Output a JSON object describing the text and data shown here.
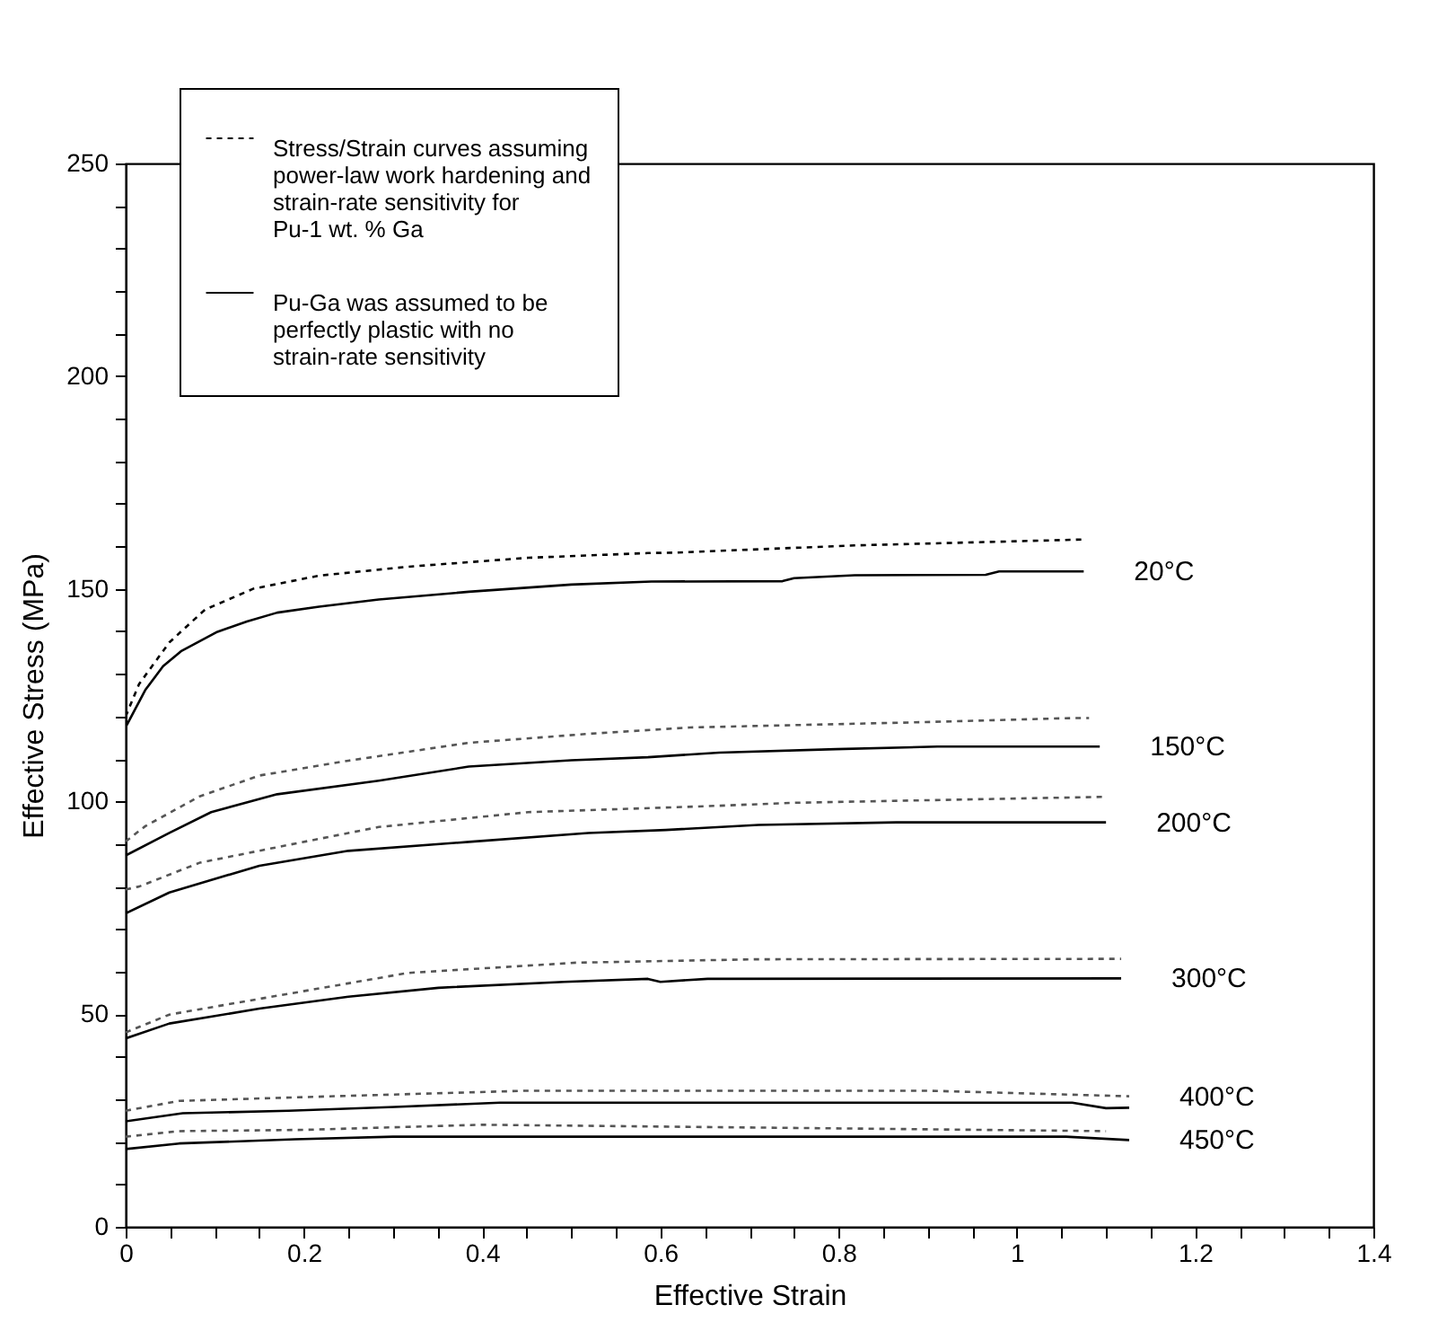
{
  "chart_data": {
    "type": "line",
    "xlabel": "Effective Strain",
    "ylabel": "Effective Stress (MPa)",
    "xlim": [
      0,
      1.4
    ],
    "ylim": [
      0,
      250
    ],
    "xticks": [
      0,
      {
        "value": 0.05,
        "label": null
      },
      0.2,
      {
        "value": 0.1,
        "label": null
      },
      {
        "value": 0.15,
        "label": null
      },
      {
        "value": 0.25,
        "label": null
      },
      {
        "value": 0.3,
        "label": null
      },
      {
        "value": 0.35,
        "label": null
      },
      0.4,
      {
        "value": 0.45,
        "label": null
      },
      {
        "value": 0.5,
        "label": null
      },
      {
        "value": 0.55,
        "label": null
      },
      0.6,
      {
        "value": 0.65,
        "label": null
      },
      {
        "value": 0.7,
        "label": null
      },
      {
        "value": 0.75,
        "label": null
      },
      0.8,
      {
        "value": 0.85,
        "label": null
      },
      {
        "value": 0.9,
        "label": null
      },
      {
        "value": 0.95,
        "label": null
      },
      1,
      {
        "value": 1.05,
        "label": null
      },
      {
        "value": 1.1,
        "label": null
      },
      {
        "value": 1.15,
        "label": null
      },
      1.2,
      {
        "value": 1.25,
        "label": null
      },
      {
        "value": 1.3,
        "label": null
      },
      {
        "value": 1.35,
        "label": null
      },
      1.4
    ],
    "yticks": [
      0,
      {
        "value": 10,
        "label": null
      },
      {
        "value": 20,
        "label": null
      },
      {
        "value": 30,
        "label": null
      },
      {
        "value": 40,
        "label": null
      },
      50,
      {
        "value": 60,
        "label": null
      },
      {
        "value": 70,
        "label": null
      },
      {
        "value": 80,
        "label": null
      },
      {
        "value": 90,
        "label": null
      },
      100,
      {
        "value": 110,
        "label": null
      },
      {
        "value": 120,
        "label": null
      },
      {
        "value": 130,
        "label": null
      },
      {
        "value": 140,
        "label": null
      },
      150,
      {
        "value": 160,
        "label": null
      },
      {
        "value": 170,
        "label": null
      },
      {
        "value": 180,
        "label": null
      },
      {
        "value": 190,
        "label": null
      },
      200,
      {
        "value": 210,
        "label": null
      },
      {
        "value": 220,
        "label": null
      },
      {
        "value": 230,
        "label": null
      },
      {
        "value": 240,
        "label": null
      },
      250
    ],
    "grid": false,
    "legend": "top left",
    "series": [
      {
        "name": "Stress/Strain curves assuming power-law work hardening and strain-rate sensitivity for Pu-1 wt. % Ga",
        "color": "#000000",
        "line_style": "dashed",
        "x": [
          0,
          0.015,
          0.049,
          0.089,
          0.143,
          0.217,
          0.317,
          0.452,
          0.586,
          0.616,
          0.818,
          1.076
        ],
        "values": [
          120,
          127.6,
          137.4,
          145.1,
          150,
          153.1,
          155.2,
          157.3,
          158.4,
          158.5,
          160.2,
          161.6
        ]
      },
      {
        "name": "Pu-Ga was assumed to be perfectly plastic with no strain-rate sensitivity",
        "color": "#000000",
        "line_style": "solid",
        "x": [
          0,
          0.022,
          0.042,
          0.062,
          0.103,
          0.136,
          0.17,
          0.217,
          0.284,
          0.385,
          0.5,
          0.59,
          0.737,
          0.75,
          0.818,
          0.965,
          0.98,
          1.075
        ],
        "values": [
          117.5,
          126.2,
          131.8,
          135.3,
          139.9,
          142.3,
          144.4,
          145.8,
          147.5,
          149.3,
          151,
          151.7,
          151.8,
          152.5,
          153.2,
          153.3,
          154.1,
          154.1
        ]
      },
      {
        "color": "#555555",
        "line_style": "dashed",
        "x": [
          0,
          0.022,
          0.083,
          0.15,
          0.25,
          0.385,
          0.519,
          0.633,
          0.885,
          1.06,
          1.081
        ],
        "values": [
          90.6,
          94.2,
          101.2,
          106.1,
          109.6,
          113.8,
          115.9,
          117.4,
          118.6,
          119.6,
          119.6
        ]
      },
      {
        "color": "#000000",
        "line_style": "solid",
        "x": [
          0,
          0.049,
          0.096,
          0.17,
          0.284,
          0.385,
          0.5,
          0.586,
          0.666,
          0.797,
          0.911,
          1.093
        ],
        "values": [
          87.3,
          92.6,
          97.5,
          101.7,
          104.9,
          108.2,
          109.7,
          110.4,
          111.5,
          112.3,
          112.9,
          112.9
        ]
      },
      {
        "color": "#555555",
        "line_style": "dashed",
        "x": [
          0,
          0.015,
          0.083,
          0.183,
          0.284,
          0.452,
          0.653,
          0.751,
          1.1
        ],
        "values": [
          79.3,
          80,
          85.6,
          89.8,
          94,
          97.5,
          98.9,
          99.7,
          101.1
        ]
      },
      {
        "color": "#000000",
        "line_style": "solid",
        "x": [
          0,
          0.049,
          0.15,
          0.25,
          0.385,
          0.519,
          0.606,
          0.71,
          0.865,
          1.1
        ],
        "values": [
          73.7,
          78.6,
          84.9,
          88.4,
          90.5,
          92.6,
          93.3,
          94.5,
          95.1,
          95.1
        ]
      },
      {
        "color": "#555555",
        "line_style": "dashed",
        "x": [
          0,
          0.049,
          0.183,
          0.317,
          0.505,
          0.707,
          1.117
        ],
        "values": [
          45.7,
          49.9,
          54.8,
          59.7,
          62.1,
          62.9,
          63
        ]
      },
      {
        "color": "#000000",
        "line_style": "solid",
        "x": [
          0,
          0.049,
          0.15,
          0.25,
          0.351,
          0.492,
          0.586,
          0.6,
          0.653,
          1.117
        ],
        "values": [
          44.3,
          47.8,
          51.3,
          54.1,
          56.2,
          57.6,
          58.3,
          57.6,
          58.3,
          58.4
        ]
      },
      {
        "color": "#555555",
        "line_style": "dashed",
        "x": [
          0,
          0.06,
          0.2,
          0.45,
          0.9,
          1.126
        ],
        "values": [
          27.3,
          29.6,
          30.5,
          32,
          32,
          30.7
        ]
      },
      {
        "color": "#000000",
        "line_style": "solid",
        "x": [
          0,
          0.064,
          0.183,
          0.302,
          0.42,
          0.9,
          1.062,
          1.1,
          1.126
        ],
        "values": [
          24.8,
          26.7,
          27.3,
          28.2,
          29.2,
          29.2,
          29.2,
          27.9,
          28
        ]
      },
      {
        "color": "#555555",
        "line_style": "dashed",
        "x": [
          0,
          0.06,
          0.2,
          0.4,
          1.1
        ],
        "values": [
          21.2,
          22.5,
          22.8,
          24,
          22.5
        ]
      },
      {
        "color": "#000000",
        "line_style": "solid",
        "x": [
          0,
          0.06,
          0.19,
          0.3,
          1.055,
          1.126
        ],
        "values": [
          18.3,
          19.6,
          20.6,
          21.2,
          21.2,
          20.4
        ]
      }
    ],
    "annotations": [
      {
        "text": "20°C",
        "x": 1.075,
        "y": 154.1
      },
      {
        "text": "150°C",
        "x": 1.093,
        "y": 112.9
      },
      {
        "text": "200°C",
        "x": 1.1,
        "y": 95.1
      },
      {
        "text": "300°C",
        "x": 1.117,
        "y": 58.4
      },
      {
        "text": "400°C",
        "x": 1.126,
        "y": 30.7
      },
      {
        "text": "450°C",
        "x": 1.126,
        "y": 20.4
      }
    ]
  }
}
